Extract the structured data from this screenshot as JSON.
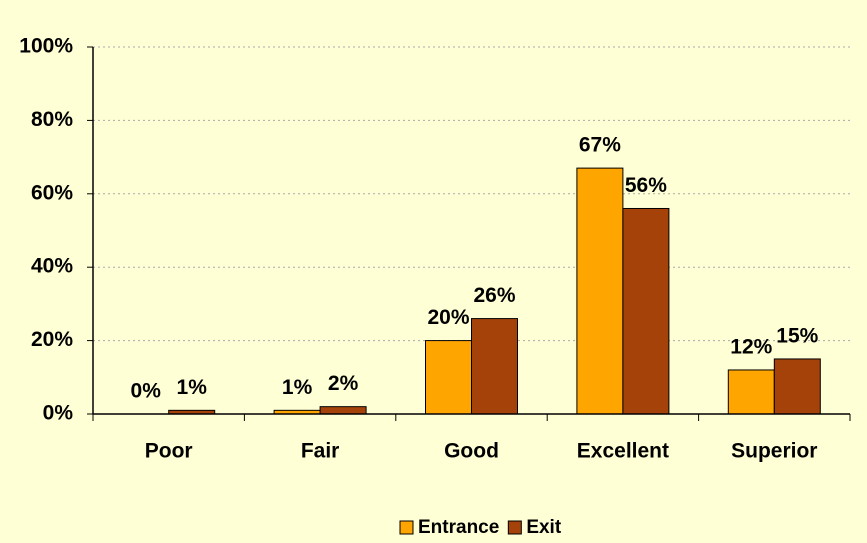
{
  "chart_data": {
    "type": "bar",
    "categories": [
      "Poor",
      "Fair",
      "Good",
      "Excellent",
      "Superior"
    ],
    "series": [
      {
        "name": "Entrance",
        "color": "#ffa500",
        "values": [
          0,
          1,
          20,
          67,
          12
        ],
        "value_labels": [
          "0%",
          "1%",
          "20%",
          "67%",
          "12%"
        ]
      },
      {
        "name": "Exit",
        "color": "#a5420a",
        "values": [
          1,
          2,
          26,
          56,
          15
        ],
        "value_labels": [
          "1%",
          "2%",
          "26%",
          "56%",
          "15%"
        ]
      }
    ],
    "ylim": [
      0,
      100
    ],
    "yticks": [
      {
        "value": 0,
        "label": "0%"
      },
      {
        "value": 20,
        "label": "20%"
      },
      {
        "value": 40,
        "label": "40%"
      },
      {
        "value": 60,
        "label": "60%"
      },
      {
        "value": 80,
        "label": "80%"
      },
      {
        "value": 100,
        "label": "100%"
      }
    ],
    "grid": true,
    "legend": "bottom"
  }
}
